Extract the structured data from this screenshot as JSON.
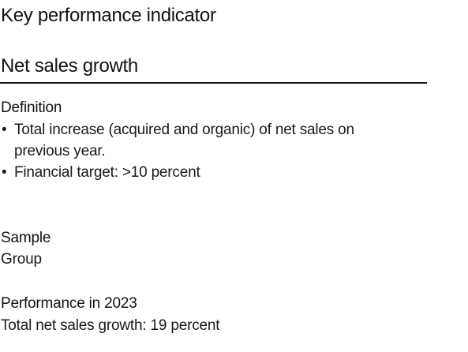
{
  "header": {
    "title": "Key performance indicator"
  },
  "metric": {
    "name": "Net sales growth"
  },
  "definition": {
    "label": "Definition",
    "bullets": [
      "Total increase (acquired and organic) of net sales on previous year.",
      "Financial target: >10 percent"
    ],
    "bullet_symbol": "•"
  },
  "sample": {
    "label": "Sample",
    "value": "Group"
  },
  "performance": {
    "label": "Performance in 2023",
    "value": "Total net sales growth: 19 percent"
  }
}
